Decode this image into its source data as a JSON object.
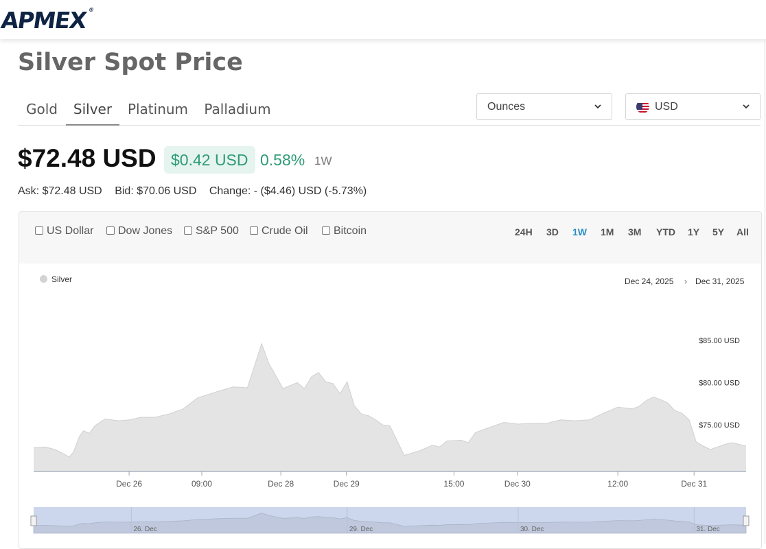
{
  "header": {
    "logo_text": "APMEX",
    "logo_mark": "®"
  },
  "page_title": "Silver Spot Price",
  "tabs": [
    {
      "label": "Gold",
      "active": false
    },
    {
      "label": "Silver",
      "active": true
    },
    {
      "label": "Platinum",
      "active": false
    },
    {
      "label": "Palladium",
      "active": false
    }
  ],
  "unit_select": {
    "value": "Ounces"
  },
  "currency_select": {
    "value": "USD",
    "flag_icon": "us-flag-icon"
  },
  "price": {
    "main": "$72.48 USD",
    "change": "$0.42 USD",
    "change_pct": "0.58%",
    "period": "1W",
    "up_color": "#2f9b78"
  },
  "details": {
    "ask": "Ask: $72.48 USD",
    "bid": "Bid: $70.06 USD",
    "change": "Change: - ($4.46) USD (-5.73%)"
  },
  "compare": [
    "US Dollar",
    "Dow Jones",
    "S&P 500",
    "Crude Oil",
    "Bitcoin"
  ],
  "ranges": [
    {
      "label": "24H",
      "active": false
    },
    {
      "label": "3D",
      "active": false
    },
    {
      "label": "1W",
      "active": true
    },
    {
      "label": "1M",
      "active": false
    },
    {
      "label": "3M",
      "active": false
    },
    {
      "label": "YTD",
      "active": false
    },
    {
      "label": "1Y",
      "active": false
    },
    {
      "label": "5Y",
      "active": false
    },
    {
      "label": "All",
      "active": false
    }
  ],
  "chart_legend": "Silver",
  "date_from": "Dec 24, 2025",
  "date_sep": "›",
  "date_to": "Dec 31, 2025",
  "chart_data": {
    "type": "area",
    "series": [
      {
        "name": "Silver",
        "x": [
          0,
          0.016,
          0.03,
          0.044,
          0.05,
          0.056,
          0.064,
          0.07,
          0.078,
          0.086,
          0.1,
          0.12,
          0.135,
          0.15,
          0.17,
          0.19,
          0.21,
          0.23,
          0.26,
          0.28,
          0.3,
          0.32,
          0.33,
          0.35,
          0.37,
          0.38,
          0.39,
          0.4,
          0.41,
          0.42,
          0.43,
          0.44,
          0.45,
          0.46,
          0.47,
          0.48,
          0.49,
          0.5,
          0.52,
          0.54,
          0.56,
          0.57,
          0.58,
          0.6,
          0.61,
          0.62,
          0.64,
          0.66,
          0.68,
          0.7,
          0.72,
          0.74,
          0.76,
          0.78,
          0.8,
          0.82,
          0.84,
          0.85,
          0.86,
          0.87,
          0.88,
          0.89,
          0.9,
          0.91,
          0.92,
          0.93,
          0.94,
          0.95,
          0.97,
          0.98,
          1.0
        ],
        "values": [
          72.3,
          72.4,
          72.1,
          71.5,
          71.2,
          71.8,
          73.6,
          74.3,
          74.0,
          74.9,
          75.7,
          75.5,
          75.6,
          75.9,
          75.9,
          76.3,
          76.9,
          78.2,
          79.0,
          79.5,
          79.4,
          84.6,
          82.3,
          79.3,
          80.0,
          79.3,
          80.7,
          81.2,
          80.1,
          79.9,
          78.7,
          80.1,
          77.3,
          76.3,
          76.1,
          75.6,
          75.0,
          74.9,
          71.4,
          71.9,
          72.6,
          72.4,
          73.1,
          73.2,
          72.9,
          74.1,
          74.7,
          75.3,
          75.1,
          75.2,
          75.2,
          75.6,
          75.5,
          75.6,
          76.4,
          77.1,
          76.9,
          77.2,
          77.9,
          78.3,
          78.0,
          77.6,
          76.7,
          76.4,
          75.6,
          73.0,
          72.5,
          72.1,
          72.7,
          72.9,
          72.5
        ]
      }
    ],
    "ylim": [
      69.5,
      88.0
    ],
    "yticks": [
      {
        "value": 85,
        "label": "$85.00 USD"
      },
      {
        "value": 80,
        "label": "$80.00 USD"
      },
      {
        "value": 75,
        "label": "$75.00 USD"
      }
    ],
    "xticks": [
      {
        "pos": 0.134,
        "label": "Dec 26"
      },
      {
        "pos": 0.236,
        "label": "09:00"
      },
      {
        "pos": 0.347,
        "label": "Dec 28"
      },
      {
        "pos": 0.439,
        "label": "Dec 29"
      },
      {
        "pos": 0.59,
        "label": "15:00"
      },
      {
        "pos": 0.679,
        "label": "Dec 30"
      },
      {
        "pos": 0.82,
        "label": "12:00"
      },
      {
        "pos": 0.927,
        "label": "Dec 31"
      }
    ],
    "navigator_labels": [
      {
        "pos": 0.14,
        "label": "26. Dec"
      },
      {
        "pos": 0.443,
        "label": "29. Dec"
      },
      {
        "pos": 0.683,
        "label": "30. Dec"
      },
      {
        "pos": 0.93,
        "label": "31. Dec"
      }
    ],
    "colors": {
      "fill": "#e4e4e4",
      "line": "#d0d0d0",
      "axis": "#9aa6b8",
      "navigator": "#ccd6ec"
    }
  }
}
